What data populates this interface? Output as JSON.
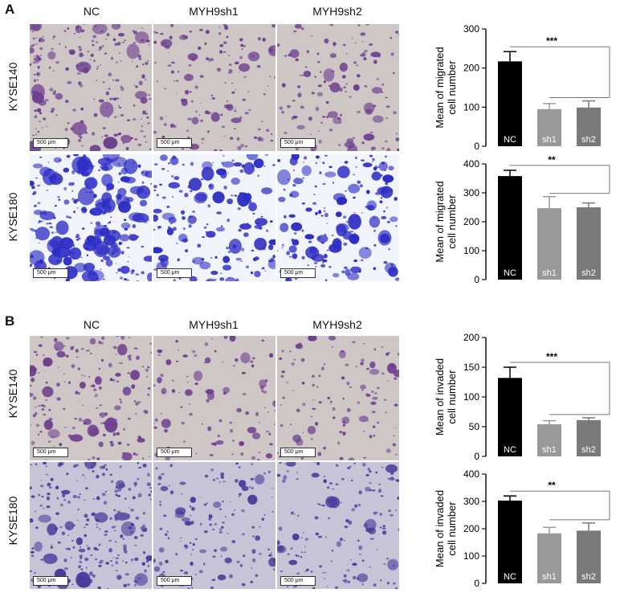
{
  "panels": [
    {
      "letter": "A",
      "columns": [
        "NC",
        "MYH9sh1",
        "MYH9sh2"
      ],
      "rows": [
        {
          "label": "KYSE140",
          "stain": "light",
          "densities": [
            0.85,
            0.55,
            0.5
          ]
        },
        {
          "label": "KYSE180",
          "stain": "dark",
          "densities": [
            1.0,
            0.65,
            0.7
          ]
        }
      ],
      "scale_text": "500 μm"
    },
    {
      "letter": "B",
      "columns": [
        "NC",
        "MYH9sh1",
        "MYH9sh2"
      ],
      "rows": [
        {
          "label": "KYSE140",
          "stain": "light",
          "densities": [
            0.7,
            0.4,
            0.45
          ]
        },
        {
          "label": "KYSE180",
          "stain": "medium",
          "densities": [
            0.9,
            0.55,
            0.6
          ]
        }
      ],
      "scale_text": "500 μm"
    }
  ],
  "colors": {
    "nc_bar": "#000000",
    "sh1_bar": "#999999",
    "sh2_bar": "#7a7a7a",
    "light_bg": "#cfc6c6",
    "light_cell": "#6d3d8f",
    "dark_bg": "#f2f4fb",
    "dark_cell": "#2e2ec4",
    "medium_bg": "#c8c4d8",
    "medium_cell": "#4a3b9a"
  },
  "chart_data": [
    {
      "type": "bar",
      "categories": [
        "NC",
        "sh1",
        "sh2"
      ],
      "values": [
        217,
        95,
        99
      ],
      "errors": [
        25,
        14,
        17
      ],
      "ylabel": "Mean of migrated\ncell number",
      "ylim": [
        0,
        300
      ],
      "yticks": [
        "0",
        "100",
        "200",
        "300"
      ],
      "significance": "***"
    },
    {
      "type": "bar",
      "categories": [
        "NC",
        "sh1",
        "sh2"
      ],
      "values": [
        358,
        247,
        250
      ],
      "errors": [
        20,
        40,
        15
      ],
      "ylabel": "Mean of migrated\ncell number",
      "ylim": [
        0,
        400
      ],
      "yticks": [
        "0",
        "100",
        "200",
        "300",
        "400"
      ],
      "significance": "**"
    },
    {
      "type": "bar",
      "categories": [
        "NC",
        "sh1",
        "sh2"
      ],
      "values": [
        132,
        54,
        61
      ],
      "errors": [
        18,
        6,
        4
      ],
      "ylabel": "Mean of invaded\ncell number",
      "ylim": [
        0,
        200
      ],
      "yticks": [
        "0",
        "50",
        "100",
        "150",
        "200"
      ],
      "significance": "***"
    },
    {
      "type": "bar",
      "categories": [
        "NC",
        "sh1",
        "sh2"
      ],
      "values": [
        303,
        183,
        193
      ],
      "errors": [
        17,
        22,
        28
      ],
      "ylabel": "Mean of invaded\ncell number",
      "ylim": [
        0,
        400
      ],
      "yticks": [
        "0",
        "100",
        "200",
        "300",
        "400"
      ],
      "significance": "**"
    }
  ]
}
